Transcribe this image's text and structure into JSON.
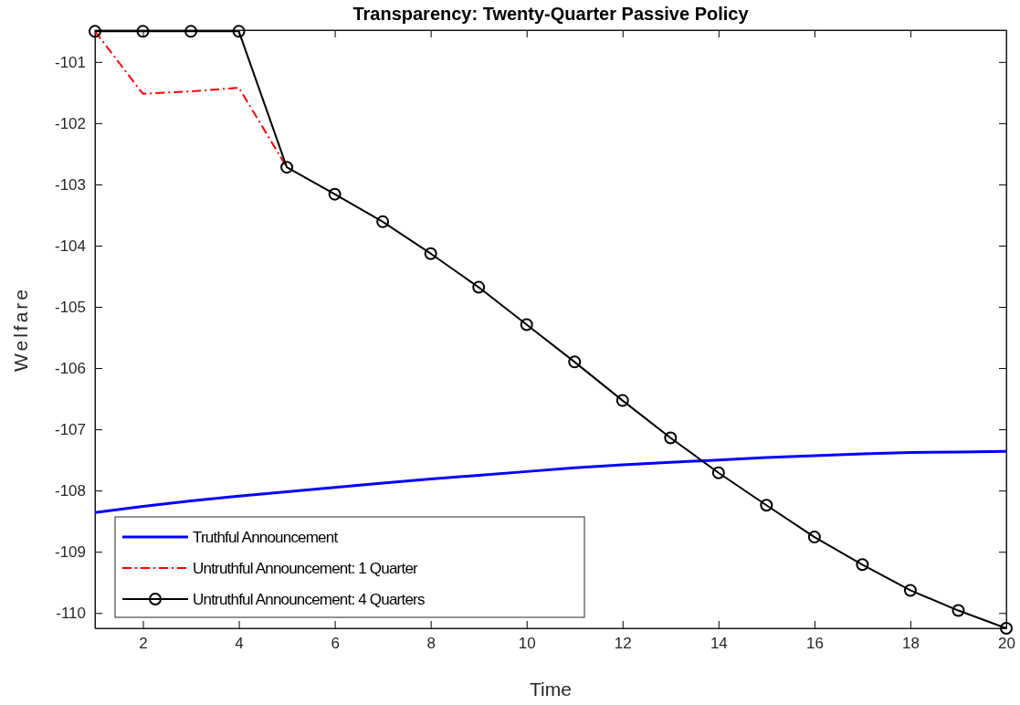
{
  "chart_data": {
    "type": "line",
    "title": "Transparency: Twenty-Quarter Passive Policy",
    "xlabel": "Time",
    "ylabel": "Welfare",
    "x": [
      1,
      2,
      3,
      4,
      5,
      6,
      7,
      8,
      9,
      10,
      11,
      12,
      13,
      14,
      15,
      16,
      17,
      18,
      19,
      20
    ],
    "xlim": [
      1,
      20
    ],
    "xticks": [
      2,
      4,
      6,
      8,
      10,
      12,
      14,
      16,
      18,
      20
    ],
    "ylim": [
      -110.25,
      -100.48
    ],
    "yticks": [
      -110,
      -109,
      -108,
      -107,
      -106,
      -105,
      -104,
      -103,
      -102,
      -101
    ],
    "grid": false,
    "legend": "bottom left",
    "series": [
      {
        "name": "Truthful Announcement",
        "color": "#0000ff",
        "marker": "none",
        "line_style": "solid",
        "values": [
          -108.36,
          -108.26,
          -108.17,
          -108.09,
          -108.02,
          -107.95,
          -107.88,
          -107.81,
          -107.75,
          -107.69,
          -107.63,
          -107.58,
          -107.54,
          -107.5,
          -107.46,
          -107.43,
          -107.4,
          -107.38,
          -107.37,
          -107.36
        ]
      },
      {
        "name": "Untruthful Announcement: 1 Quarter",
        "color": "#ff0000",
        "marker": "none",
        "line_style": "dashed",
        "values": [
          -100.5,
          -101.52,
          -101.48,
          -101.42,
          -102.72,
          null,
          null,
          null,
          null,
          null,
          null,
          null,
          null,
          null,
          null,
          null,
          null,
          null,
          null,
          null
        ]
      },
      {
        "name": "Untruthful Announcement: 4 Quarters",
        "color": "#000000",
        "marker": "circle",
        "line_style": "solid",
        "values": [
          -100.5,
          -100.5,
          -100.5,
          -100.5,
          -102.72,
          -103.16,
          -103.61,
          -104.13,
          -104.68,
          -105.29,
          -105.9,
          -106.53,
          -107.14,
          -107.71,
          -108.24,
          -108.76,
          -109.21,
          -109.63,
          -109.96,
          -110.25
        ]
      }
    ]
  }
}
